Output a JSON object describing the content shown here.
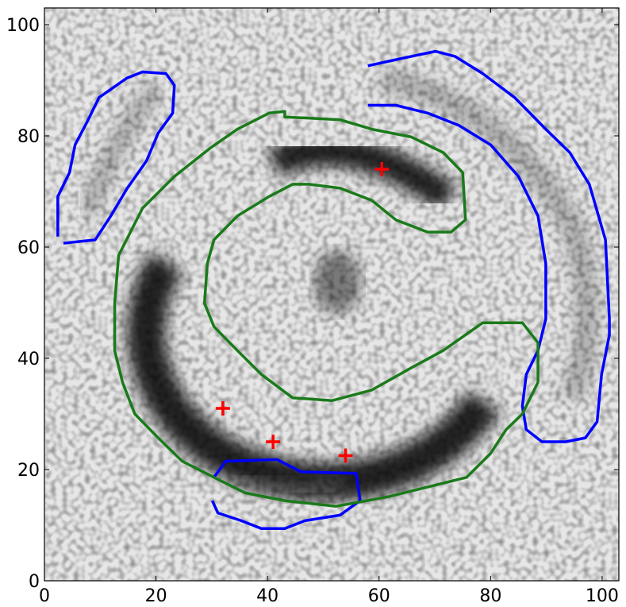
{
  "chart_data": {
    "type": "contour",
    "xlim": [
      0,
      103
    ],
    "ylim": [
      0,
      103
    ],
    "xticks": [
      0,
      20,
      40,
      60,
      80,
      100
    ],
    "yticks": [
      0,
      20,
      40,
      60,
      80,
      100
    ],
    "contours": [
      {
        "color": "#0000ff",
        "x": [
          2.4,
          2.4,
          4.5,
          5.5,
          7.7,
          9.8,
          14.8,
          17.6,
          21.8,
          23.3,
          23.0,
          20.4,
          18.3,
          14.8,
          11.9,
          9.1,
          3.4
        ],
        "y": [
          61.9,
          69.1,
          73.4,
          78.4,
          82.6,
          86.9,
          90.4,
          91.5,
          91.2,
          89.1,
          84.1,
          80.5,
          75.5,
          70.5,
          65.6,
          61.3,
          60.7
        ]
      },
      {
        "color": "#0000ff",
        "x": [
          58.0,
          65.8,
          70.1,
          73.6,
          78.6,
          84.3,
          89.9,
          94.2,
          97.7,
          100.6,
          101.3,
          101.3,
          99.9,
          99.1,
          97.0,
          93.5,
          89.2,
          86.4,
          85.7,
          86.4,
          88.5,
          89.9,
          89.9,
          88.5,
          85.0,
          80.0,
          74.3,
          68.7,
          63.0,
          58.0
        ],
        "y": [
          92.6,
          94.3,
          95.2,
          94.3,
          91.2,
          86.9,
          81.2,
          77.0,
          71.3,
          61.3,
          47.1,
          44.2,
          37.1,
          28.6,
          25.7,
          25.0,
          25.0,
          27.2,
          31.4,
          37.1,
          41.4,
          47.1,
          57.0,
          65.6,
          72.7,
          78.4,
          81.9,
          84.1,
          85.5,
          85.5
        ]
      },
      {
        "color": "#0000ff",
        "x": [
          30.4,
          32.5,
          41.7,
          46.0,
          55.9,
          56.6,
          53.0,
          46.7,
          43.1,
          38.9,
          35.3,
          31.1,
          30.1
        ],
        "y": [
          18.6,
          21.5,
          21.8,
          19.6,
          19.3,
          14.4,
          11.8,
          10.8,
          9.4,
          9.4,
          10.8,
          12.2,
          14.4
        ]
      },
      {
        "color": "#1a7a1a",
        "x": [
          29.6,
          34.6,
          40.3,
          43.1,
          43.1,
          53.0,
          58.7,
          65.8,
          71.5,
          75.0,
          75.5,
          72.9,
          68.7,
          63.0,
          58.7,
          53.0,
          47.4,
          44.5,
          40.3,
          34.6,
          30.4,
          29.2,
          28.7,
          30.4,
          34.6,
          38.9,
          44.5,
          51.6,
          58.7,
          65.8,
          71.5,
          78.6,
          85.7,
          88.5,
          88.5,
          85.7,
          82.8,
          80.0,
          75.7,
          70.1,
          61.6,
          52.3,
          43.1,
          36.0,
          30.4,
          24.7,
          20.4,
          16.2,
          14.0,
          12.6,
          12.6,
          13.3,
          17.6,
          23.3,
          29.6
        ],
        "y": [
          77.7,
          81.2,
          84.1,
          84.4,
          83.4,
          82.9,
          81.2,
          79.8,
          77.0,
          73.4,
          64.9,
          62.7,
          62.7,
          64.9,
          68.4,
          70.6,
          71.3,
          71.3,
          69.1,
          65.6,
          61.3,
          57.0,
          49.9,
          45.7,
          41.4,
          37.1,
          32.9,
          32.4,
          34.3,
          38.3,
          41.4,
          46.4,
          46.4,
          42.8,
          35.7,
          30.0,
          27.2,
          22.9,
          18.6,
          17.2,
          15.1,
          13.4,
          14.4,
          15.8,
          18.6,
          21.5,
          25.7,
          30.0,
          35.7,
          41.4,
          49.9,
          58.5,
          67.0,
          72.7,
          77.7
        ]
      }
    ],
    "markers": {
      "color": "#ff0000",
      "x": [
        32.0,
        41.0,
        54.0,
        60.5
      ],
      "y": [
        31.0,
        25.0,
        22.5,
        74.0
      ]
    }
  }
}
